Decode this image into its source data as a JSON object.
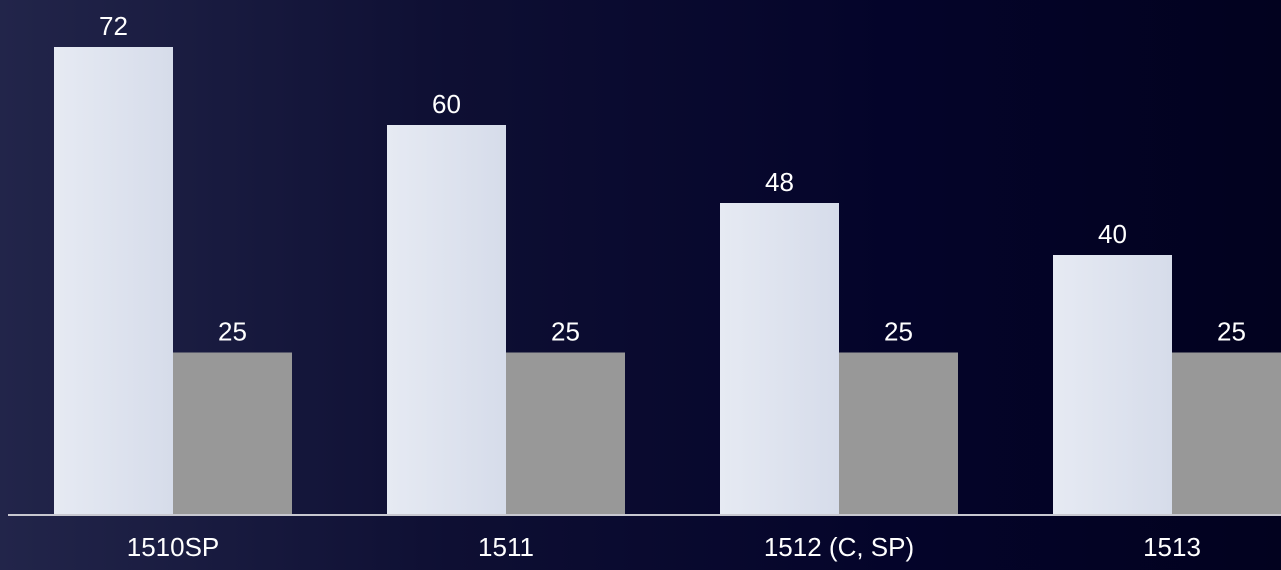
{
  "chart_data": {
    "type": "bar",
    "title": "",
    "xlabel": "",
    "ylabel": "",
    "categories": [
      "1510SP",
      "1511",
      "1512 (C, SP)",
      "1513"
    ],
    "series": [
      {
        "values": [
          72,
          60,
          48,
          40
        ]
      },
      {
        "values": [
          25,
          25,
          25,
          25
        ]
      }
    ],
    "ylim": [
      0,
      72
    ],
    "grid": false,
    "legend": "none"
  },
  "colors": {
    "series_1": "#dfe4ef",
    "series_2": "#989898",
    "text": "#ffffff",
    "baseline": "#c8c8d0"
  }
}
